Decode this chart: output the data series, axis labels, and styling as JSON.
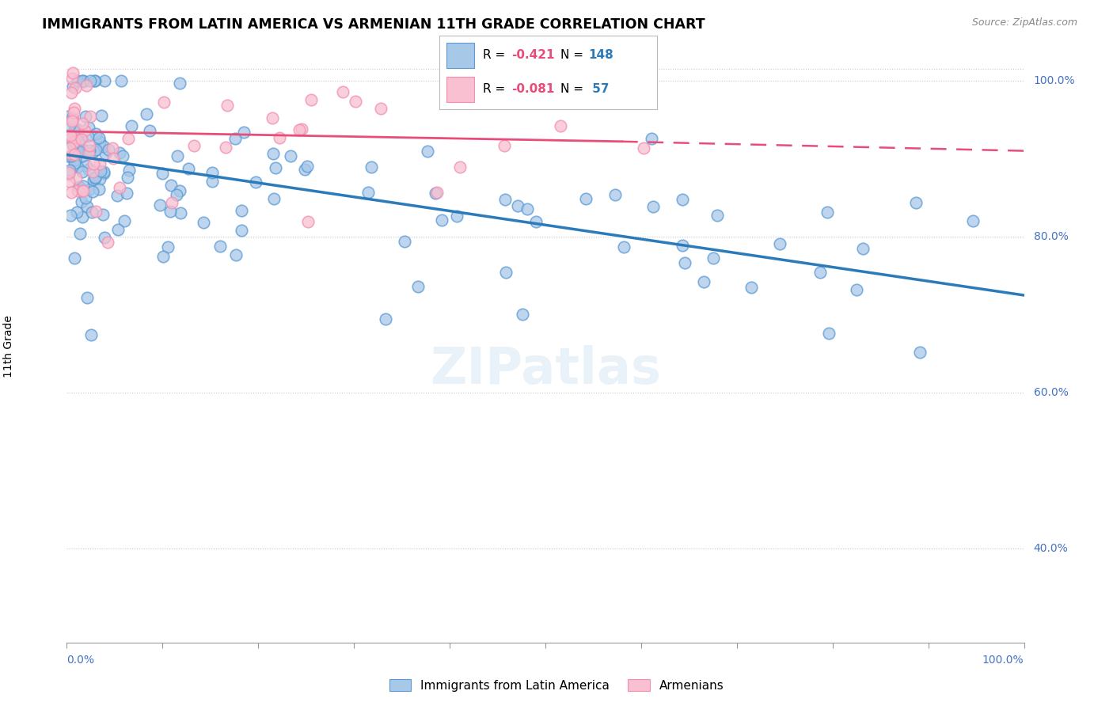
{
  "title": "IMMIGRANTS FROM LATIN AMERICA VS ARMENIAN 11TH GRADE CORRELATION CHART",
  "source": "Source: ZipAtlas.com",
  "ylabel": "11th Grade",
  "xlim": [
    0,
    100
  ],
  "ylim": [
    28,
    104
  ],
  "yticks": [
    40,
    60,
    80,
    100
  ],
  "ytick_labels": [
    "40.0%",
    "60.0%",
    "80.0%",
    "100.0%"
  ],
  "blue_r": "-0.421",
  "blue_n": "148",
  "pink_r": "-0.081",
  "pink_n": "57",
  "blue_color": "#a8c8e8",
  "blue_edge_color": "#5b9bd5",
  "pink_color": "#f8c0d0",
  "pink_edge_color": "#f48fb1",
  "blue_line_color": "#2b7bba",
  "pink_line_color": "#e84d7a",
  "background_color": "#ffffff",
  "grid_color": "#c8c8c8",
  "blue_trendline": [
    [
      0,
      100
    ],
    [
      90.5,
      72.5
    ]
  ],
  "pink_trendline_solid": [
    [
      0,
      58
    ],
    [
      93.5,
      92.2
    ]
  ],
  "pink_trendline_dashed": [
    [
      58,
      100
    ],
    [
      92.2,
      91.0
    ]
  ],
  "legend_label_blue": "Immigrants from Latin America",
  "legend_label_pink": "Armenians",
  "watermark": "ZIPatlas",
  "title_fontsize": 12.5,
  "source_fontsize": 9,
  "legend_r_color": "#e84d7a",
  "legend_n_color": "#2b7bba",
  "xtick_positions": [
    0,
    10,
    20,
    30,
    40,
    50,
    60,
    70,
    80,
    90,
    100
  ]
}
